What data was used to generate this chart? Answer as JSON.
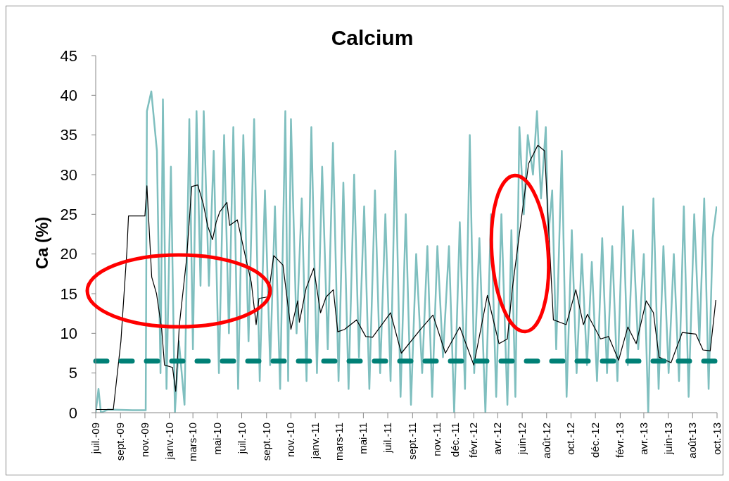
{
  "chart_data": {
    "type": "line",
    "title": "Calcium",
    "ylabel": "Ca (%)",
    "xlim": [
      "2009-07-01",
      "2013-10-01"
    ],
    "xticks": [
      {
        "value": "2009-07-01",
        "label": "juil.-09"
      },
      {
        "value": "2009-09-01",
        "label": "sept.-09"
      },
      {
        "value": "2009-11-01",
        "label": "nov.-09"
      },
      {
        "value": "2010-01-01",
        "label": "janv.-10"
      },
      {
        "value": "2010-03-01",
        "label": "mars-10"
      },
      {
        "value": "2010-05-01",
        "label": "mai-10"
      },
      {
        "value": "2010-07-01",
        "label": "juil.-10"
      },
      {
        "value": "2010-09-01",
        "label": "sept.-10"
      },
      {
        "value": "2010-11-01",
        "label": "nov.-10"
      },
      {
        "value": "2011-01-01",
        "label": "janv.-11"
      },
      {
        "value": "2011-03-01",
        "label": "mars-11"
      },
      {
        "value": "2011-05-01",
        "label": "mai-11"
      },
      {
        "value": "2011-07-01",
        "label": "juil.-11"
      },
      {
        "value": "2011-09-01",
        "label": "sept.-11"
      },
      {
        "value": "2011-11-01",
        "label": "nov.-11"
      },
      {
        "value": "2011-12-16",
        "label": "déc.-11"
      },
      {
        "value": "2012-02-01",
        "label": "févr.-12"
      },
      {
        "value": "2012-04-01",
        "label": "avr.-12"
      },
      {
        "value": "2012-06-01",
        "label": "juin-12"
      },
      {
        "value": "2012-08-01",
        "label": "août-12"
      },
      {
        "value": "2012-10-01",
        "label": "oct.-12"
      },
      {
        "value": "2012-12-01",
        "label": "déc.-12"
      },
      {
        "value": "2013-02-01",
        "label": "févr.-13"
      },
      {
        "value": "2013-04-01",
        "label": "avr.-13"
      },
      {
        "value": "2013-06-01",
        "label": "juin-13"
      },
      {
        "value": "2013-08-01",
        "label": "août-13"
      },
      {
        "value": "2013-10-01",
        "label": "oct.-13"
      }
    ],
    "ylim": [
      0,
      45
    ],
    "yticks": [
      0,
      5,
      10,
      15,
      20,
      25,
      30,
      35,
      40,
      45
    ],
    "grid": false,
    "ref_lines": [
      {
        "axis": "y",
        "value": 6.5,
        "color": "#008076",
        "line_style": "dashed"
      }
    ],
    "series": [
      {
        "color": "#7fbfbf",
        "x": [
          "2009-07-01",
          "2009-07-08",
          "2009-07-14",
          "2009-08-01",
          "2009-10-01",
          "2009-11-03",
          "2009-11-06",
          "2009-11-17",
          "2009-12-01",
          "2009-12-10",
          "2009-12-16",
          "2009-12-25",
          "2010-01-05",
          "2010-01-15",
          "2010-01-25",
          "2010-02-08",
          "2010-02-20",
          "2010-03-01",
          "2010-03-10",
          "2010-03-20",
          "2010-03-28",
          "2010-04-10",
          "2010-04-22",
          "2010-05-05",
          "2010-05-18",
          "2010-05-30",
          "2010-06-10",
          "2010-06-22",
          "2010-07-05",
          "2010-07-18",
          "2010-08-01",
          "2010-08-15",
          "2010-08-28",
          "2010-09-10",
          "2010-09-22",
          "2010-10-05",
          "2010-10-18",
          "2010-10-25",
          "2010-11-01",
          "2010-11-15",
          "2010-11-28",
          "2010-12-10",
          "2010-12-22",
          "2011-01-05",
          "2011-01-18",
          "2011-02-01",
          "2011-02-14",
          "2011-02-28",
          "2011-03-12",
          "2011-03-25",
          "2011-04-08",
          "2011-04-20",
          "2011-05-03",
          "2011-05-16",
          "2011-05-30",
          "2011-06-12",
          "2011-06-25",
          "2011-07-08",
          "2011-07-20",
          "2011-08-02",
          "2011-08-15",
          "2011-08-28",
          "2011-09-10",
          "2011-09-25",
          "2011-10-08",
          "2011-10-20",
          "2011-11-02",
          "2011-11-16",
          "2011-12-01",
          "2011-12-14",
          "2011-12-28",
          "2012-01-10",
          "2012-01-22",
          "2012-02-02",
          "2012-02-15",
          "2012-03-01",
          "2012-03-15",
          "2012-03-28",
          "2012-04-10",
          "2012-04-25",
          "2012-05-05",
          "2012-05-15",
          "2012-05-25",
          "2012-06-05",
          "2012-06-15",
          "2012-06-28",
          "2012-07-08",
          "2012-07-18",
          "2012-07-30",
          "2012-08-05",
          "2012-08-15",
          "2012-08-25",
          "2012-09-08",
          "2012-09-20",
          "2012-10-03",
          "2012-10-15",
          "2012-10-28",
          "2012-11-10",
          "2012-11-22",
          "2012-12-05",
          "2012-12-18",
          "2012-12-30",
          "2013-01-12",
          "2013-01-25",
          "2013-02-08",
          "2013-02-20",
          "2013-03-05",
          "2013-03-18",
          "2013-04-01",
          "2013-04-12",
          "2013-04-25",
          "2013-05-08",
          "2013-05-20",
          "2013-06-02",
          "2013-06-15",
          "2013-06-28",
          "2013-07-10",
          "2013-07-22",
          "2013-08-05",
          "2013-08-18",
          "2013-08-30",
          "2013-09-10",
          "2013-09-20",
          "2013-09-30"
        ],
        "values": [
          0,
          3,
          0,
          0.4,
          0.3,
          0.3,
          38,
          40.5,
          33,
          5,
          39.5,
          3,
          31,
          0,
          9,
          1,
          37,
          8,
          38,
          16,
          38,
          16,
          33,
          5,
          35,
          10,
          36,
          3,
          35,
          9,
          37,
          4,
          28,
          6,
          26,
          3,
          38,
          4,
          37,
          10,
          27,
          4,
          36,
          5,
          31,
          8,
          34,
          4,
          29,
          3,
          30,
          7,
          26,
          3,
          28,
          5,
          25,
          4,
          33,
          2,
          25,
          1,
          20,
          5,
          21,
          2,
          21,
          7,
          21,
          0,
          24,
          3,
          35,
          5,
          22,
          0,
          25,
          2,
          25,
          1,
          23,
          2,
          36,
          25,
          35,
          30,
          38,
          27,
          36,
          22,
          28,
          8,
          33,
          2,
          23,
          5,
          20,
          6,
          19,
          4,
          22,
          5,
          21,
          4,
          26,
          6,
          23,
          8,
          20,
          0,
          27,
          3,
          21,
          5,
          20,
          4,
          26,
          2,
          25,
          9,
          27,
          3,
          22,
          26
        ]
      },
      {
        "color": "#000000",
        "x": [
          "2009-07-01",
          "2009-08-14",
          "2009-09-02",
          "2009-09-17",
          "2009-09-21",
          "2009-11-01",
          "2009-11-06",
          "2009-11-18",
          "2009-11-30",
          "2009-12-13",
          "2009-12-20",
          "2010-01-09",
          "2010-01-17",
          "2010-01-26",
          "2010-02-13",
          "2010-02-26",
          "2010-03-13",
          "2010-03-27",
          "2010-04-07",
          "2010-04-19",
          "2010-04-28",
          "2010-05-07",
          "2010-05-25",
          "2010-06-01",
          "2010-06-20",
          "2010-07-15",
          "2010-07-25",
          "2010-08-06",
          "2010-08-13",
          "2010-09-05",
          "2010-09-19",
          "2010-10-12",
          "2010-11-01",
          "2010-11-18",
          "2010-11-22",
          "2010-12-09",
          "2010-12-28",
          "2011-01-14",
          "2011-01-28",
          "2011-02-15",
          "2011-02-26",
          "2011-03-15",
          "2011-04-14",
          "2011-05-07",
          "2011-05-24",
          "2011-07-08",
          "2011-08-04",
          "2011-09-21",
          "2011-10-22",
          "2011-11-22",
          "2011-12-28",
          "2012-02-01",
          "2012-03-06",
          "2012-04-04",
          "2012-04-25",
          "2012-05-07",
          "2012-05-26",
          "2012-06-17",
          "2012-07-10",
          "2012-07-27",
          "2012-08-18",
          "2012-09-19",
          "2012-10-13",
          "2012-11-01",
          "2012-11-11",
          "2012-12-14",
          "2013-01-03",
          "2013-01-28",
          "2013-02-20",
          "2013-03-13",
          "2013-04-07",
          "2013-04-25",
          "2013-05-09",
          "2013-06-08",
          "2013-07-06",
          "2013-08-09",
          "2013-08-27",
          "2013-09-14",
          "2013-09-28"
        ],
        "values": [
          0.4,
          0.4,
          9,
          20.4,
          24.8,
          24.8,
          28.6,
          17.1,
          15,
          10.5,
          6,
          5.7,
          2.7,
          11,
          19.3,
          28.5,
          28.7,
          26.3,
          23.5,
          21.8,
          24,
          25.3,
          26.5,
          23.6,
          24.3,
          18.6,
          16.4,
          11.1,
          14.4,
          14.6,
          19.8,
          18.6,
          10.5,
          14.1,
          11.4,
          15.7,
          18.2,
          12.6,
          14.6,
          15.5,
          10.2,
          10.5,
          11.7,
          9.6,
          9.5,
          12.6,
          7.5,
          10.5,
          12.3,
          7.5,
          10.8,
          6,
          14.8,
          8.7,
          9.3,
          15.5,
          22.9,
          31.4,
          33.7,
          33,
          11.7,
          11.1,
          15.5,
          11.1,
          12.4,
          9.3,
          9.6,
          6.6,
          10.8,
          8.7,
          14.1,
          12.6,
          7,
          6.3,
          10.1,
          9.9,
          7.9,
          7.8,
          14.2
        ]
      }
    ]
  }
}
